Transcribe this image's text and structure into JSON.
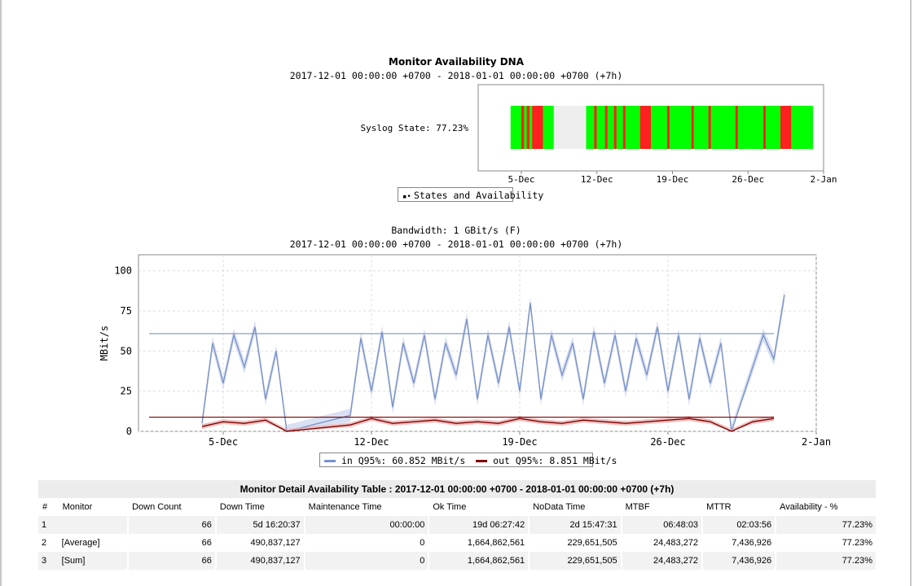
{
  "availability_chart": {
    "title": "Monitor Availability DNA",
    "subtitle": "2017-12-01 00:00:00 +0700 - 2018-01-01 00:00:00 +0700 (+7h)",
    "row_label": "Syslog State: 77.23%",
    "x_ticks": [
      "5-Dec",
      "12-Dec",
      "19-Dec",
      "26-Dec",
      "2-Jan"
    ],
    "legend": "States and Availability",
    "colors": {
      "ok": "#00ff00",
      "down": "#ff2020",
      "nodata": "#eeeeee"
    }
  },
  "bandwidth_chart": {
    "title": "Bandwidth: 1 GBit/s (F)",
    "subtitle": "2017-12-01 00:00:00 +0700 - 2018-01-01 00:00:00 +0700 (+7h)",
    "legend_in": "in Q95%: 60.852 MBit/s",
    "legend_out": "out Q95%: 8.851 MBit/s"
  },
  "chart_data": [
    {
      "type": "timeline",
      "title": "Monitor Availability DNA",
      "row": "Syslog State: 77.23%",
      "x_range": [
        "2017-12-01",
        "2018-01-02"
      ],
      "x_ticks": [
        "5-Dec",
        "12-Dec",
        "19-Dec",
        "26-Dec",
        "2-Jan"
      ],
      "segments": [
        {
          "start": "2017-12-04",
          "end": "2017-12-05",
          "state": "ok"
        },
        {
          "start": "2017-12-05",
          "end": "2017-12-06",
          "state": "mixed"
        },
        {
          "start": "2017-12-06",
          "end": "2017-12-07",
          "state": "down"
        },
        {
          "start": "2017-12-07",
          "end": "2017-12-08",
          "state": "ok"
        },
        {
          "start": "2017-12-08",
          "end": "2017-12-11",
          "state": "nodata"
        },
        {
          "start": "2017-12-11",
          "end": "2017-12-16",
          "state": "ok"
        },
        {
          "start": "2017-12-16",
          "end": "2017-12-17",
          "state": "down"
        },
        {
          "start": "2017-12-17",
          "end": "2017-12-29",
          "state": "ok"
        },
        {
          "start": "2017-12-29",
          "end": "2017-12-30",
          "state": "down"
        },
        {
          "start": "2017-12-30",
          "end": "2018-01-01",
          "state": "ok"
        }
      ]
    },
    {
      "type": "line",
      "title": "Bandwidth: 1 GBit/s (F)",
      "ylabel": "MBit/s",
      "ylim": [
        0,
        110
      ],
      "yticks": [
        0,
        25,
        50,
        75,
        100
      ],
      "x_range": [
        "2017-12-01",
        "2018-01-02"
      ],
      "x_ticks": [
        "5-Dec",
        "12-Dec",
        "19-Dec",
        "26-Dec",
        "2-Jan"
      ],
      "grid": true,
      "legend_position": "bottom",
      "series": [
        {
          "name": "in Q95%: 60.852 MBit/s",
          "color": "#7b93c9",
          "q95": 60.852,
          "x": [
            "2017-12-04",
            "2017-12-04 12:00",
            "2017-12-05",
            "2017-12-05 12:00",
            "2017-12-06",
            "2017-12-06 12:00",
            "2017-12-07",
            "2017-12-07 12:00",
            "2017-12-08",
            "2017-12-11",
            "2017-12-11 12:00",
            "2017-12-12",
            "2017-12-12 12:00",
            "2017-12-13",
            "2017-12-13 12:00",
            "2017-12-14",
            "2017-12-14 12:00",
            "2017-12-15",
            "2017-12-15 12:00",
            "2017-12-16",
            "2017-12-16 12:00",
            "2017-12-17",
            "2017-12-17 12:00",
            "2017-12-18",
            "2017-12-18 12:00",
            "2017-12-19",
            "2017-12-19 12:00",
            "2017-12-20",
            "2017-12-20 12:00",
            "2017-12-21",
            "2017-12-21 12:00",
            "2017-12-22",
            "2017-12-22 12:00",
            "2017-12-23",
            "2017-12-23 12:00",
            "2017-12-24",
            "2017-12-24 12:00",
            "2017-12-25",
            "2017-12-25 12:00",
            "2017-12-26",
            "2017-12-26 12:00",
            "2017-12-27",
            "2017-12-27 12:00",
            "2017-12-28",
            "2017-12-28 12:00",
            "2017-12-29",
            "2017-12-30",
            "2017-12-30 12:00",
            "2017-12-31",
            "2017-12-31 12:00"
          ],
          "y": [
            5,
            55,
            30,
            60,
            40,
            65,
            20,
            50,
            0,
            10,
            58,
            25,
            62,
            15,
            55,
            30,
            60,
            20,
            55,
            35,
            70,
            20,
            60,
            30,
            65,
            25,
            80,
            20,
            60,
            35,
            55,
            20,
            62,
            30,
            60,
            25,
            58,
            35,
            65,
            25,
            60,
            20,
            58,
            30,
            55,
            0,
            40,
            60,
            45,
            85
          ]
        },
        {
          "name": "out Q95%: 8.851 MBit/s",
          "color": "#800000",
          "q95": 8.851,
          "x": [
            "2017-12-04",
            "2017-12-05",
            "2017-12-06",
            "2017-12-07",
            "2017-12-08",
            "2017-12-11",
            "2017-12-12",
            "2017-12-13",
            "2017-12-14",
            "2017-12-15",
            "2017-12-16",
            "2017-12-17",
            "2017-12-18",
            "2017-12-19",
            "2017-12-20",
            "2017-12-21",
            "2017-12-22",
            "2017-12-23",
            "2017-12-24",
            "2017-12-25",
            "2017-12-26",
            "2017-12-27",
            "2017-12-28",
            "2017-12-29",
            "2017-12-30",
            "2017-12-31"
          ],
          "y": [
            3,
            6,
            5,
            7,
            0,
            4,
            8,
            5,
            6,
            7,
            5,
            6,
            5,
            8,
            6,
            5,
            7,
            6,
            5,
            6,
            7,
            8,
            6,
            0,
            6,
            8
          ]
        }
      ]
    }
  ],
  "table": {
    "title": "Monitor Detail Availability Table : 2017-12-01 00:00:00 +0700 - 2018-01-01 00:00:00 +0700 (+7h)",
    "headers": [
      "#",
      "Monitor",
      "Down Count",
      "Down Time",
      "Maintenance Time",
      "Ok Time",
      "NoData Time",
      "MTBF",
      "MTTR",
      "Availability - %"
    ],
    "rows": [
      [
        "1",
        "",
        "66",
        "5d 16:20:37",
        "00:00:00",
        "19d 06:27:42",
        "2d 15:47:31",
        "06:48:03",
        "02:03:56",
        "77.23%"
      ],
      [
        "2",
        "[Average]",
        "66",
        "490,837,127",
        "0",
        "1,664,862,561",
        "229,651,505",
        "24,483,272",
        "7,436,926",
        "77.23%"
      ],
      [
        "3",
        "[Sum]",
        "66",
        "490,837,127",
        "0",
        "1,664,862,561",
        "229,651,505",
        "24,483,272",
        "7,436,926",
        "77.23%"
      ]
    ]
  }
}
